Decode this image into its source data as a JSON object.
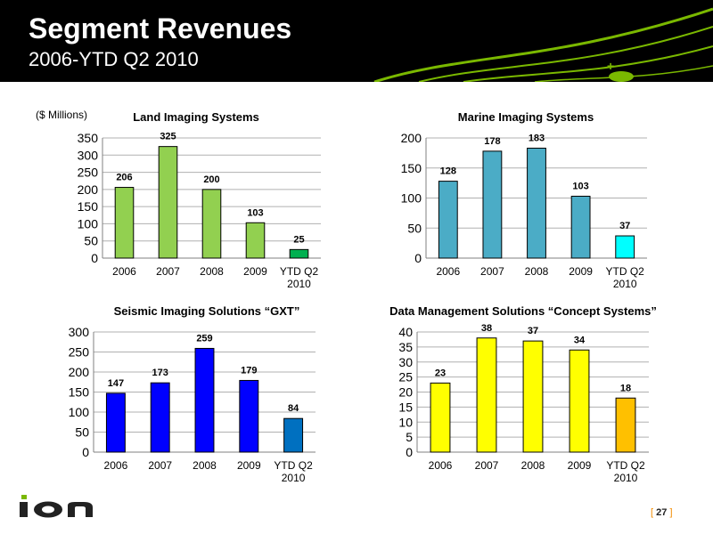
{
  "header": {
    "title": "Segment Revenues",
    "subtitle": "2006-YTD Q2 2010",
    "accent_color": "#7ab800",
    "plus_icon": "+"
  },
  "units_label": "($ Millions)",
  "footer": {
    "logo_icon": "ion-logo",
    "page_open": "[",
    "page_number": "27",
    "page_close": "]"
  },
  "chart_data": [
    {
      "type": "bar",
      "title": "Land Imaging Systems",
      "categories": [
        "2006",
        "2007",
        "2008",
        "2009",
        "YTD Q2 2010"
      ],
      "values": [
        206,
        325,
        200,
        103,
        25
      ],
      "ylim": [
        0,
        350
      ],
      "yticks": [
        0,
        50,
        100,
        150,
        200,
        250,
        300,
        350
      ],
      "colors": [
        "#92d050",
        "#92d050",
        "#92d050",
        "#92d050",
        "#00b050"
      ],
      "grid": true,
      "xlabel": "",
      "ylabel": ""
    },
    {
      "type": "bar",
      "title": "Marine Imaging Systems",
      "categories": [
        "2006",
        "2007",
        "2008",
        "2009",
        "YTD Q2 2010"
      ],
      "values": [
        128,
        178,
        183,
        103,
        37
      ],
      "ylim": [
        0,
        200
      ],
      "yticks": [
        0,
        50,
        100,
        150,
        200
      ],
      "colors": [
        "#4bacc6",
        "#4bacc6",
        "#4bacc6",
        "#4bacc6",
        "#00ffff"
      ],
      "grid": true,
      "xlabel": "",
      "ylabel": ""
    },
    {
      "type": "bar",
      "title": "Seismic Imaging Solutions “GXT”",
      "categories": [
        "2006",
        "2007",
        "2008",
        "2009",
        "YTD Q2 2010"
      ],
      "values": [
        147,
        173,
        259,
        179,
        84
      ],
      "ylim": [
        0,
        300
      ],
      "yticks": [
        0,
        50,
        100,
        150,
        200,
        250,
        300
      ],
      "colors": [
        "#0000ff",
        "#0000ff",
        "#0000ff",
        "#0000ff",
        "#0070c0"
      ],
      "grid": true,
      "xlabel": "",
      "ylabel": ""
    },
    {
      "type": "bar",
      "title": "Data Management Solutions “Concept Systems”",
      "categories": [
        "2006",
        "2007",
        "2008",
        "2009",
        "YTD Q2 2010"
      ],
      "values": [
        23,
        38,
        37,
        34,
        18
      ],
      "ylim": [
        0,
        40
      ],
      "yticks": [
        0,
        5,
        10,
        15,
        20,
        25,
        30,
        35,
        40
      ],
      "colors": [
        "#ffff00",
        "#ffff00",
        "#ffff00",
        "#ffff00",
        "#ffc000"
      ],
      "grid": true,
      "xlabel": "",
      "ylabel": ""
    }
  ]
}
